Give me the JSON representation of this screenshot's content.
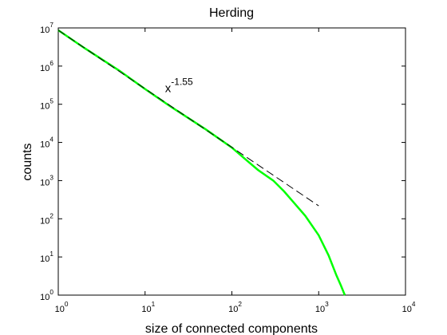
{
  "chart_data": {
    "type": "line",
    "title": "Herding",
    "xlabel": "size of connected components",
    "ylabel": "counts",
    "xscale": "log",
    "yscale": "log",
    "xlim": [
      1,
      10000
    ],
    "ylim": [
      1,
      10000000
    ],
    "xticks": [
      {
        "value": 1,
        "label": "10",
        "exponent": "0"
      },
      {
        "value": 10,
        "label": "10",
        "exponent": "1"
      },
      {
        "value": 100,
        "label": "10",
        "exponent": "2"
      },
      {
        "value": 1000,
        "label": "10",
        "exponent": "3"
      },
      {
        "value": 10000,
        "label": "10",
        "exponent": "4"
      }
    ],
    "yticks": [
      {
        "value": 1,
        "label": "10",
        "exponent": "0"
      },
      {
        "value": 10,
        "label": "10",
        "exponent": "1"
      },
      {
        "value": 100,
        "label": "10",
        "exponent": "2"
      },
      {
        "value": 1000,
        "label": "10",
        "exponent": "3"
      },
      {
        "value": 10000,
        "label": "10",
        "exponent": "4"
      },
      {
        "value": 100000,
        "label": "10",
        "exponent": "5"
      },
      {
        "value": 1000000,
        "label": "10",
        "exponent": "6"
      },
      {
        "value": 10000000,
        "label": "10",
        "exponent": "7"
      }
    ],
    "annotation": {
      "text": "x",
      "exponent": "-1.55",
      "x": 17,
      "y": 250000
    },
    "series": [
      {
        "color": "#00ff00",
        "style": "solid",
        "x": [
          1,
          2,
          5,
          10,
          20,
          50,
          100,
          150,
          200,
          300,
          400,
          500,
          700,
          1000,
          1300,
          1600,
          1800,
          2000
        ],
        "values": [
          8700000,
          2970000,
          770000,
          250000,
          85000,
          22000,
          7300,
          3300,
          1900,
          1000,
          520,
          290,
          120,
          37,
          11,
          3.3,
          1.8,
          1
        ]
      },
      {
        "color": "#000000",
        "style": "dashed",
        "x": [
          1,
          1000
        ],
        "values": [
          8700000,
          218
        ]
      }
    ]
  }
}
